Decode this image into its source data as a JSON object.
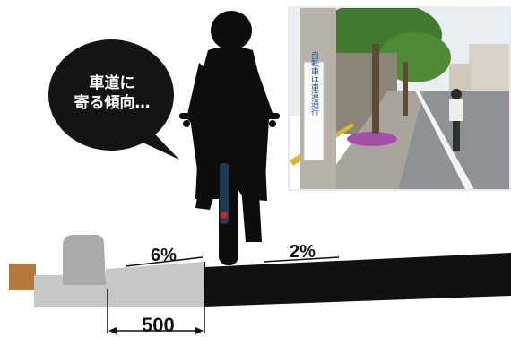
{
  "speech_bubble": {
    "line1": "車道に",
    "line2": "寄る傾向…"
  },
  "cross_section": {
    "sidewalk_slope": "6%",
    "road_slope": "2%",
    "gutter_width": "500"
  },
  "photo": {
    "sign_text": "自転車は車道通行"
  }
}
